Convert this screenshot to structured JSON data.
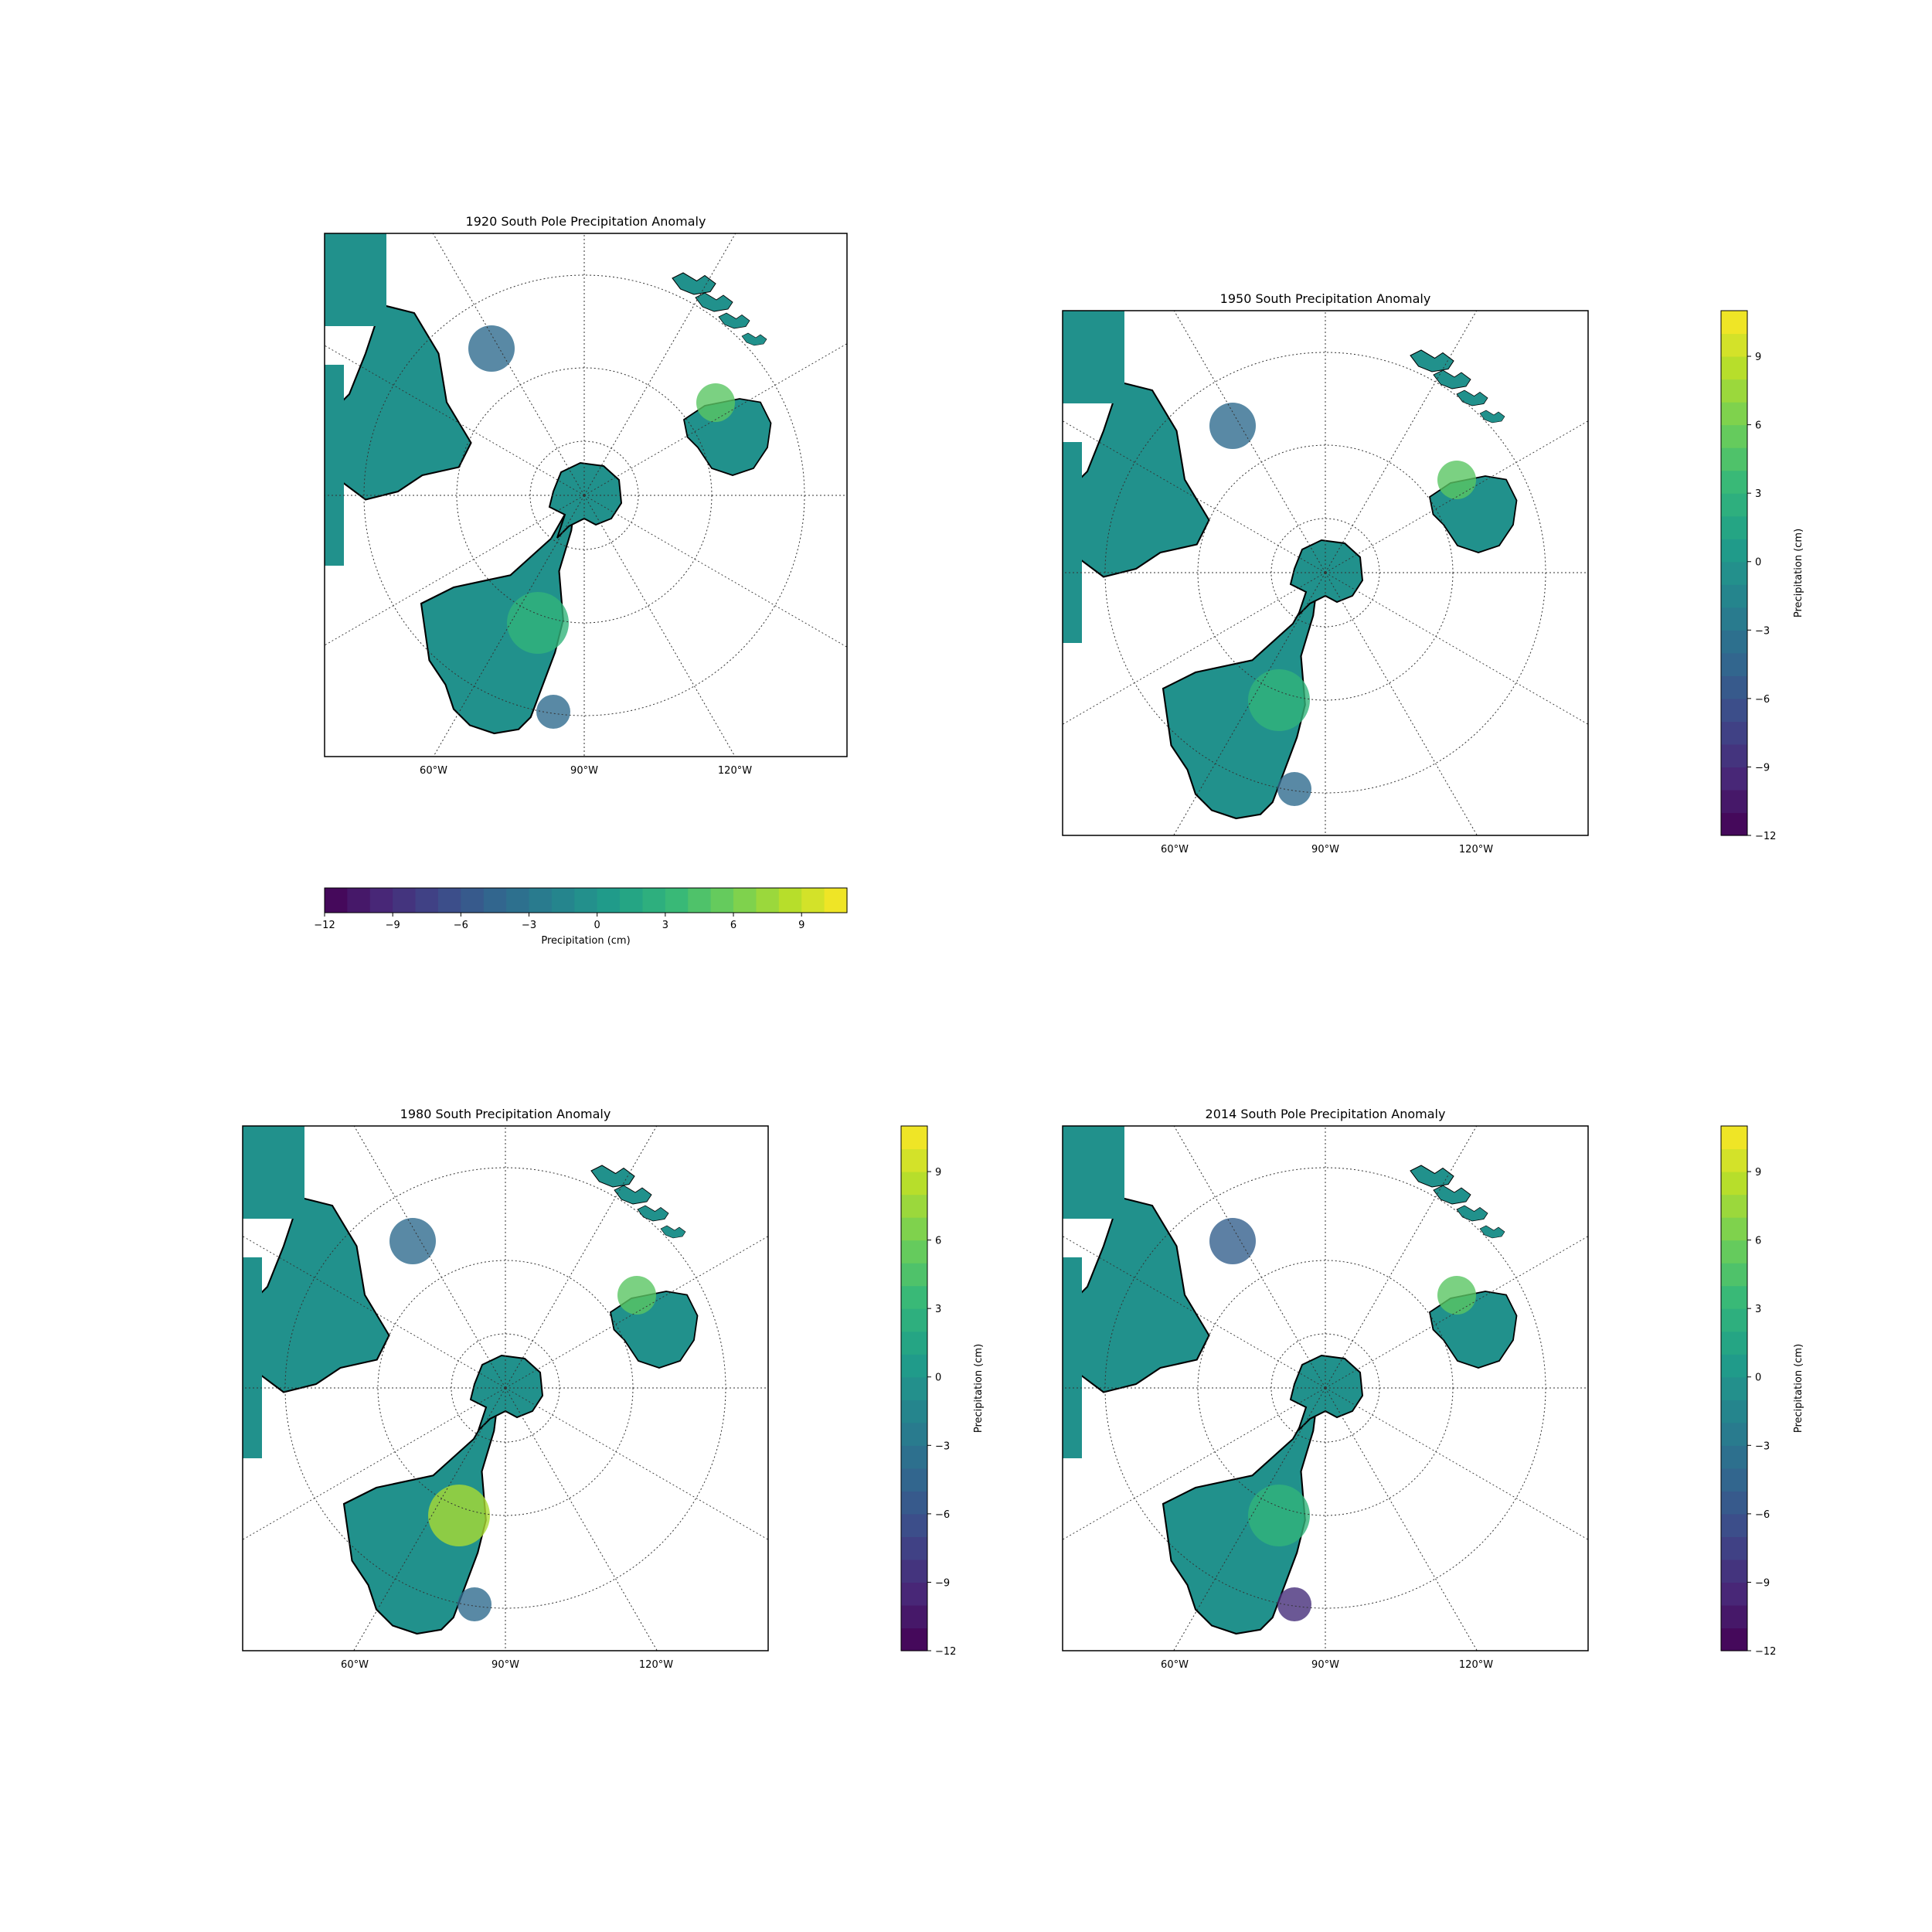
{
  "figure": {
    "background": "#ffffff",
    "land_color": "#21918c",
    "ocean_color": "#ffffff",
    "border_color": "#000000",
    "grid_color": "#333333"
  },
  "colormap": {
    "name": "viridis",
    "stops": [
      "#440154",
      "#482878",
      "#3e4989",
      "#31688e",
      "#26828e",
      "#1f9e89",
      "#35b779",
      "#6ece58",
      "#b5de2b",
      "#fde725"
    ],
    "min": -12,
    "max": 11,
    "levels": 23,
    "ticks": [
      -12,
      -9,
      -6,
      -3,
      0,
      3,
      6,
      9
    ]
  },
  "panels": [
    {
      "title": "1920 South Pole Precipitation Anomaly",
      "lon_labels": [
        "60°W",
        "90°W",
        "120°W"
      ],
      "colorbar": {
        "orientation": "horizontal",
        "label": "Precipitation (cm)",
        "tick_labels": [
          "−12",
          "−9",
          "−6",
          "−3",
          "0",
          "3",
          "6",
          "9"
        ]
      }
    },
    {
      "title": "1950 South Precipitation Anomaly",
      "lon_labels": [
        "60°W",
        "90°W",
        "120°W"
      ],
      "colorbar": {
        "orientation": "vertical",
        "label": "Precipitation (cm)",
        "tick_labels": [
          "−12",
          "−9",
          "−6",
          "−3",
          "0",
          "3",
          "6",
          "9"
        ]
      }
    },
    {
      "title": "1980 South Precipitation Anomaly",
      "lon_labels": [
        "60°W",
        "90°W",
        "120°W"
      ],
      "colorbar": {
        "orientation": "vertical",
        "label": "Precipitation (cm)",
        "tick_labels": [
          "−12",
          "−9",
          "−6",
          "−3",
          "0",
          "3",
          "6",
          "9"
        ]
      }
    },
    {
      "title": "2014 South Pole Precipitation Anomaly",
      "lon_labels": [
        "60°W",
        "90°W",
        "120°W"
      ],
      "colorbar": {
        "orientation": "vertical",
        "label": "Precipitation (cm)",
        "tick_labels": [
          "−12",
          "−9",
          "−6",
          "−3",
          "0",
          "3",
          "6",
          "9"
        ]
      }
    }
  ]
}
